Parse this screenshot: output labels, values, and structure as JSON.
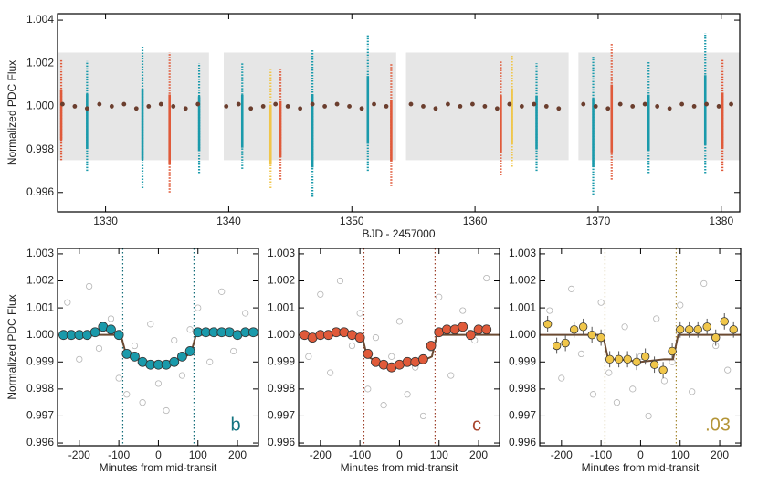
{
  "chart_data": [
    {
      "type": "lightcurve",
      "xlabel": "BJD - 2457000",
      "ylabel": "Normalized PDC Flux",
      "xlim": [
        1326.1,
        1381.5
      ],
      "ylim": [
        0.9951,
        1.0043
      ],
      "xticks": [
        1330,
        1340,
        1350,
        1360,
        1370,
        1380
      ],
      "yticks": [
        0.996,
        0.998,
        {
          "value": 1,
          "label": "1.000"
        },
        1.002,
        1.004
      ],
      "coverage": [
        {
          "x0": 1326.1,
          "x1": 1338.4,
          "low": 0.9975,
          "high": 1.0025
        },
        {
          "x0": 1339.6,
          "x1": 1353.6,
          "low": 0.9975,
          "high": 1.0025
        },
        {
          "x0": 1354.4,
          "x1": 1367.6,
          "low": 0.9975,
          "high": 1.0025
        },
        {
          "x0": 1368.4,
          "x1": 1381.5,
          "low": 0.9975,
          "high": 1.0025
        }
      ],
      "binned": {
        "color": "#6b3e2e",
        "x": [
          1326.5,
          1327.5,
          1328.5,
          1329.5,
          1330.5,
          1331.5,
          1332.5,
          1333.5,
          1334.5,
          1335.5,
          1336.5,
          1337.5,
          1339.8,
          1340.8,
          1341.8,
          1342.8,
          1343.8,
          1344.8,
          1345.8,
          1346.8,
          1347.8,
          1348.8,
          1349.8,
          1350.8,
          1351.8,
          1352.8,
          1354.8,
          1355.8,
          1356.8,
          1357.8,
          1358.8,
          1359.8,
          1360.8,
          1361.8,
          1362.8,
          1363.8,
          1364.8,
          1365.8,
          1366.8,
          1368.8,
          1369.8,
          1370.8,
          1371.8,
          1372.8,
          1373.8,
          1374.8,
          1375.8,
          1376.8,
          1377.8,
          1378.8,
          1379.8,
          1380.8
        ],
        "values": [
          1.0001,
          1.0,
          0.9999,
          1.0001,
          1.0,
          1.0001,
          0.9999,
          1.0,
          1.0001,
          1.0,
          0.9999,
          1.0001,
          1.0,
          1.0001,
          0.9999,
          1.0,
          1.0001,
          1.0,
          0.9999,
          1.0001,
          1.0,
          1.0001,
          1.0,
          0.9999,
          1.0001,
          1.0,
          1.0001,
          1.0,
          0.9999,
          1.0001,
          1.0,
          1.0001,
          1.0,
          0.9999,
          1.0001,
          1.0,
          1.0001,
          1.0,
          0.9999,
          1.0001,
          1.0,
          0.9999,
          1.0001,
          1.0,
          1.0001,
          1.0,
          0.9999,
          1.0001,
          1.0,
          1.0001,
          1.0,
          1.0001
        ]
      },
      "transits": [
        {
          "color": "#1a9aab",
          "x": [
            1328.5,
            1333.0,
            1337.6,
            1341.1,
            1346.8,
            1351.3,
            1365.0,
            1369.6,
            1374.1,
            1378.7
          ],
          "low": [
            0.997,
            0.9962,
            0.9969,
            0.9971,
            0.9958,
            0.997,
            0.997,
            0.9959,
            0.9969,
            0.9969
          ],
          "high": [
            1.0021,
            1.0028,
            1.002,
            1.002,
            1.0026,
            1.0033,
            1.002,
            1.0023,
            1.0021,
            1.0034
          ]
        },
        {
          "color": "#e05a3a",
          "x": [
            1326.4,
            1335.2,
            1344.2,
            1353.2,
            1362.1,
            1371.1,
            1380.1
          ],
          "low": [
            0.9975,
            0.996,
            0.9966,
            0.9963,
            0.9968,
            0.9966,
            0.997
          ],
          "high": [
            1.0022,
            1.0025,
            1.0018,
            1.002,
            1.0021,
            1.0029,
            1.0022
          ]
        },
        {
          "color": "#f0c64a",
          "x": [
            1343.4,
            1363.0
          ],
          "low": [
            0.9962,
            0.9972
          ],
          "high": [
            1.0017,
            1.0024
          ]
        }
      ]
    },
    {
      "type": "fold",
      "xlabel": "Minutes from mid-transit",
      "ylabel": "Normalized PDC Flux",
      "label": "b",
      "color": "#1a9aab",
      "xlim": [
        -255,
        253
      ],
      "ylim": [
        0.9959,
        1.0032
      ],
      "xticks": [
        -200,
        -100,
        0,
        100,
        200
      ],
      "yticks": [
        0.996,
        0.997,
        0.998,
        0.999,
        {
          "value": 1,
          "label": "1.000"
        },
        1.001,
        1.002,
        1.003
      ],
      "vlines": [
        -90,
        90
      ],
      "raw": {
        "x": [
          -230,
          -200,
          -175,
          -150,
          -120,
          -100,
          -80,
          -60,
          -40,
          -20,
          0,
          20,
          40,
          60,
          80,
          100,
          130,
          160,
          190,
          220
        ],
        "values": [
          1.0012,
          0.9991,
          1.0018,
          0.9995,
          1.0006,
          0.9984,
          0.9978,
          0.9996,
          0.9975,
          1.0004,
          0.9982,
          0.9972,
          0.9998,
          0.9985,
          1.0002,
          1.001,
          0.999,
          1.0016,
          0.9994,
          1.0008
        ]
      },
      "binned": {
        "x": [
          -240,
          -220,
          -200,
          -180,
          -160,
          -140,
          -120,
          -100,
          -80,
          -60,
          -40,
          -20,
          0,
          20,
          40,
          60,
          80,
          100,
          120,
          140,
          160,
          180,
          200,
          220,
          240
        ],
        "values": [
          1.0,
          1.0,
          1.0,
          1.0,
          1.0001,
          1.0003,
          1.0002,
          1.0,
          0.9993,
          0.9992,
          0.999,
          0.9989,
          0.9989,
          0.9989,
          0.999,
          0.9992,
          0.9994,
          1.0001,
          1.0001,
          1.0001,
          1.0001,
          1.0001,
          1.0,
          1.0001,
          1.0001
        ]
      },
      "model": {
        "x": [
          -255,
          -95,
          -82,
          -60,
          -30,
          0,
          30,
          60,
          82,
          95,
          253
        ],
        "values": [
          1.0,
          1.0,
          0.9993,
          0.99915,
          0.99902,
          0.99898,
          0.99902,
          0.99915,
          0.9993,
          1.0,
          1.0
        ]
      }
    },
    {
      "type": "fold",
      "xlabel": "Minutes from mid-transit",
      "label": "c",
      "color": "#e05a3a",
      "xlim": [
        -255,
        253
      ],
      "ylim": [
        0.9959,
        1.0032
      ],
      "xticks": [
        -200,
        -100,
        0,
        100,
        200
      ],
      "yticks": [
        0.996,
        0.997,
        0.998,
        0.999,
        {
          "value": 1,
          "label": "1.000"
        },
        1.001,
        1.002,
        1.003
      ],
      "vlines": [
        -90,
        90
      ],
      "raw": {
        "x": [
          -230,
          -200,
          -175,
          -150,
          -120,
          -100,
          -80,
          -60,
          -40,
          -20,
          0,
          20,
          40,
          60,
          80,
          100,
          130,
          160,
          190,
          220
        ],
        "values": [
          0.9992,
          1.0015,
          0.9986,
          1.002,
          0.9996,
          1.0008,
          0.998,
          0.9999,
          0.9974,
          0.9992,
          1.0005,
          0.9978,
          0.9988,
          0.997,
          0.9995,
          1.0014,
          0.9985,
          1.0009,
          0.9998,
          1.0021
        ]
      },
      "binned": {
        "x": [
          -240,
          -220,
          -200,
          -180,
          -160,
          -140,
          -120,
          -100,
          -80,
          -60,
          -40,
          -20,
          0,
          20,
          40,
          60,
          80,
          100,
          120,
          140,
          160,
          180,
          200,
          220
        ],
        "values": [
          1.0,
          0.9999,
          1.0,
          1.0,
          1.0001,
          1.0001,
          1.0,
          0.9999,
          0.9993,
          0.999,
          0.9989,
          0.9988,
          0.9989,
          0.999,
          0.999,
          0.9991,
          0.9996,
          1.0001,
          1.0002,
          1.0002,
          1.0003,
          1.0,
          1.0002,
          1.0002
        ]
      },
      "model": {
        "x": [
          -255,
          -95,
          -82,
          -60,
          -30,
          0,
          30,
          60,
          82,
          95,
          253
        ],
        "values": [
          1.0,
          1.0,
          0.9992,
          0.99905,
          0.99892,
          0.99887,
          0.99892,
          0.99905,
          0.9992,
          1.0,
          1.0
        ]
      }
    },
    {
      "type": "fold",
      "xlabel": "Minutes from mid-transit",
      "label": ".03",
      "color": "#f0c64a",
      "xlim": [
        -255,
        253
      ],
      "ylim": [
        0.9959,
        1.0032
      ],
      "xticks": [
        -200,
        -100,
        0,
        100,
        200
      ],
      "yticks": [
        0.996,
        0.997,
        0.998,
        0.999,
        {
          "value": 1,
          "label": "1.000"
        },
        1.001,
        1.002,
        1.003
      ],
      "vlines": [
        -90,
        90
      ],
      "raw": {
        "x": [
          -230,
          -200,
          -175,
          -150,
          -120,
          -100,
          -80,
          -60,
          -40,
          -20,
          0,
          20,
          40,
          60,
          80,
          100,
          130,
          160,
          190,
          220
        ],
        "values": [
          1.0009,
          0.9984,
          1.0017,
          0.9993,
          0.9978,
          1.0012,
          0.9986,
          0.9975,
          1.0003,
          0.998,
          0.9992,
          0.997,
          1.0006,
          0.9983,
          0.999,
          1.0011,
          0.9979,
          1.0019,
          0.9996,
          0.9987
        ]
      },
      "binned": {
        "x": [
          -235,
          -212,
          -190,
          -168,
          -145,
          -123,
          -100,
          -78,
          -55,
          -33,
          -10,
          12,
          35,
          57,
          80,
          100,
          123,
          145,
          168,
          190,
          212,
          235
        ],
        "values": [
          1.0004,
          0.9996,
          0.9997,
          1.0002,
          1.0003,
          1.0,
          0.9999,
          0.9991,
          0.9991,
          0.9991,
          0.999,
          0.9992,
          0.9989,
          0.9987,
          0.9994,
          1.0002,
          1.0002,
          1.0002,
          1.0003,
          0.9999,
          1.0005,
          1.0002
        ],
        "errors": [
          0.0003,
          0.0003,
          0.0003,
          0.0003,
          0.0003,
          0.0003,
          0.0003,
          0.0003,
          0.0003,
          0.0003,
          0.0003,
          0.0003,
          0.0003,
          0.0003,
          0.0003,
          0.0003,
          0.0003,
          0.0003,
          0.0003,
          0.0003,
          0.0003,
          0.0003
        ]
      },
      "model": {
        "x": [
          -255,
          -95,
          -82,
          -60,
          -30,
          0,
          30,
          60,
          82,
          95,
          253
        ],
        "values": [
          1.0,
          1.0,
          0.9991,
          0.9991,
          0.99905,
          0.999,
          0.99905,
          0.9991,
          0.9991,
          1.0,
          1.0
        ]
      }
    }
  ]
}
